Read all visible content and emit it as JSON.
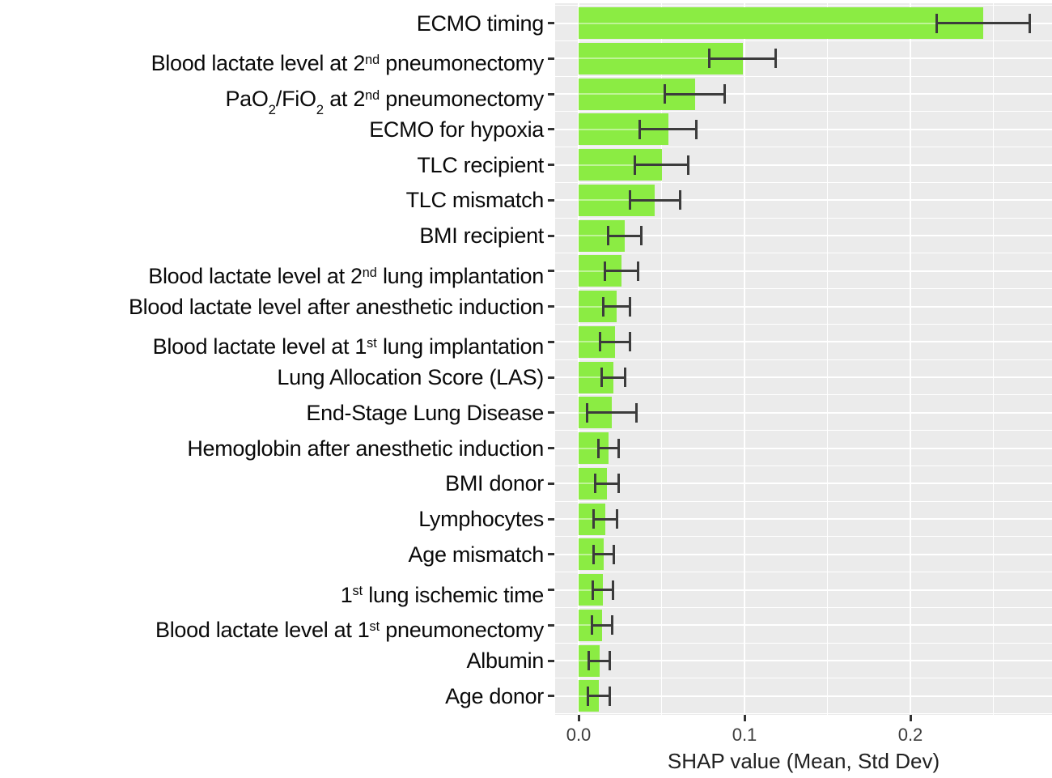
{
  "chart_data": {
    "type": "bar",
    "orientation": "horizontal",
    "title": "",
    "xlabel": "SHAP value (Mean, Std Dev)",
    "ylabel": "",
    "xlim": [
      -0.014,
      0.285
    ],
    "xtick_labels": [
      "0.0",
      "0.1",
      "0.2"
    ],
    "xtick_values": [
      0.0,
      0.1,
      0.2
    ],
    "xminor_tick_values": [
      0.05,
      0.15,
      0.25
    ],
    "grid": "white major and minor gridlines on gray panel",
    "legend": false,
    "error_bars": "mean ± standard deviation with end caps",
    "categories": [
      "ECMO timing",
      "Blood lactate level at 2nd pneumonectomy",
      "PaO2/FiO2 at 2nd pneumonectomy",
      "ECMO for hypoxia",
      "TLC recipient",
      "TLC mismatch",
      "BMI recipient",
      "Blood lactate level at 2nd lung implantation",
      "Blood lactate level after anesthetic induction",
      "Blood lactate level at 1st lung implantation",
      "Lung Allocation Score (LAS)",
      "End-Stage Lung Disease",
      "Hemoglobin after anesthetic induction",
      "BMI donor",
      "Lymphocytes",
      "Age mismatch",
      "1st lung ischemic time",
      "Blood lactate level at 1st pneumonectomy",
      "Albumin",
      "Age donor"
    ],
    "label_segments": {
      "1": [
        {
          "t": "Blood lactate level at 2"
        },
        {
          "t": "nd",
          "s": "sup"
        },
        {
          "t": " pneumonectomy"
        }
      ],
      "2": [
        {
          "t": "PaO"
        },
        {
          "t": "2",
          "s": "sub"
        },
        {
          "t": "/FiO"
        },
        {
          "t": "2",
          "s": "sub"
        },
        {
          "t": " at 2"
        },
        {
          "t": "nd",
          "s": "sup"
        },
        {
          "t": " pneumonectomy"
        }
      ],
      "7": [
        {
          "t": "Blood lactate level at 2"
        },
        {
          "t": "nd",
          "s": "sup"
        },
        {
          "t": " lung implantation"
        }
      ],
      "9": [
        {
          "t": "Blood lactate level at 1"
        },
        {
          "t": "st",
          "s": "sup"
        },
        {
          "t": " lung implantation"
        }
      ],
      "16": [
        {
          "t": "1"
        },
        {
          "t": "st",
          "s": "sup"
        },
        {
          "t": " lung ischemic time"
        }
      ],
      "17": [
        {
          "t": "Blood lactate level at 1"
        },
        {
          "t": "st",
          "s": "sup"
        },
        {
          "t": " pneumonectomy"
        }
      ]
    },
    "series": [
      {
        "name": "SHAP mean",
        "values": [
          0.244,
          0.099,
          0.07,
          0.054,
          0.05,
          0.046,
          0.028,
          0.026,
          0.023,
          0.022,
          0.021,
          0.02,
          0.018,
          0.017,
          0.016,
          0.0152,
          0.0146,
          0.014,
          0.0125,
          0.0122
        ]
      },
      {
        "name": "Std Dev",
        "values": [
          0.028,
          0.02,
          0.018,
          0.017,
          0.016,
          0.015,
          0.01,
          0.01,
          0.008,
          0.009,
          0.007,
          0.015,
          0.006,
          0.007,
          0.007,
          0.006,
          0.006,
          0.006,
          0.0065,
          0.0065
        ]
      }
    ],
    "colors": {
      "bar_fill": "#8BEC43",
      "error_bar": "#3c3c3c",
      "panel_bg": "#EBEBEB",
      "grid": "#FFFFFF",
      "tick": "#333333",
      "tick_label": "#3d3d3d",
      "axis_title": "#212121",
      "y_label": "#0a0a0a",
      "figure_bg": "#FFFFFF"
    }
  }
}
